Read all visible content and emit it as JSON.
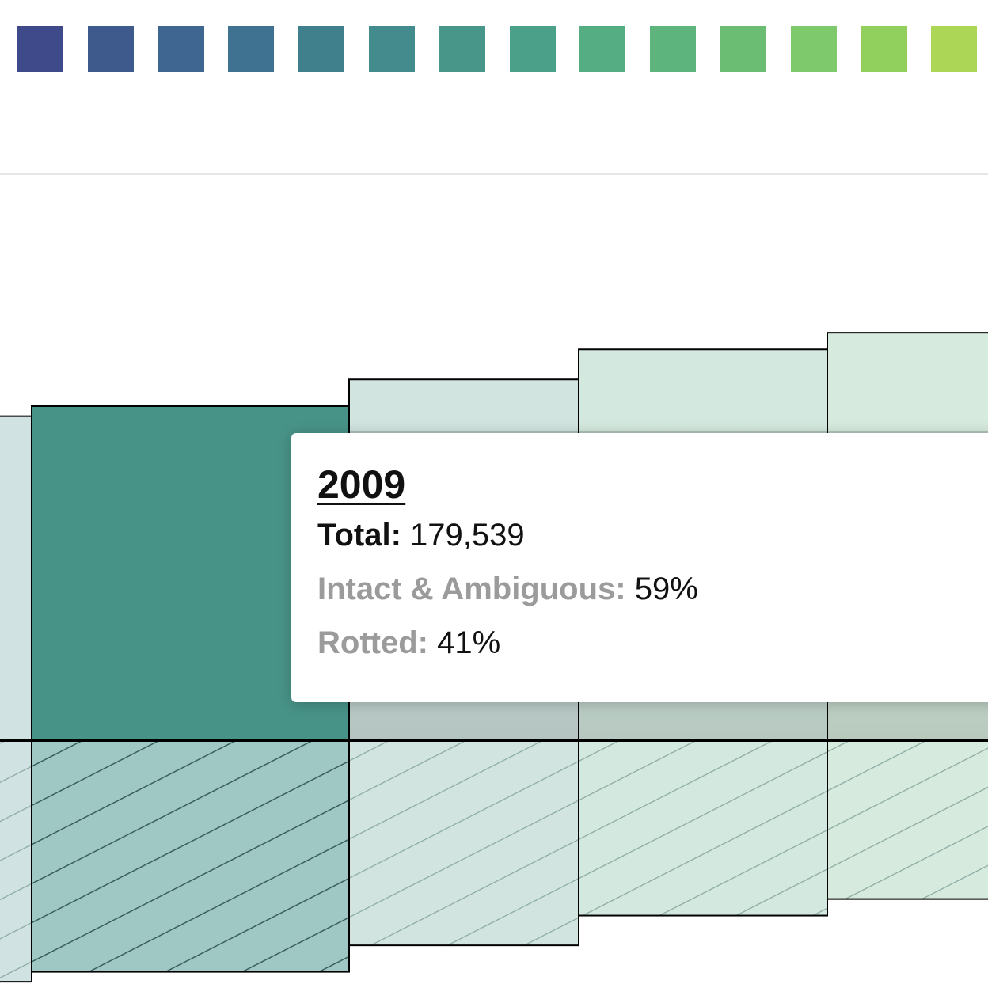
{
  "legend": {
    "swatches": [
      "#3f4a8a",
      "#3e5a8d",
      "#3e6690",
      "#3e7290",
      "#40808d",
      "#438b8c",
      "#48958a",
      "#4ba089",
      "#54ad83",
      "#5eb47d",
      "#6abd73",
      "#7ec96b",
      "#92d05d",
      "#acd756"
    ]
  },
  "chart_data": {
    "type": "bar",
    "baseline_visible": true,
    "bars": [
      {
        "id": "prev",
        "intact": 0.97,
        "rotted": 0.73,
        "fill": "#d0e2e2",
        "highlighted": false
      },
      {
        "id": "2009",
        "intact": 1.0,
        "rotted": 0.7,
        "fill": "#489388",
        "hatch_fill": "#9fc7c3",
        "highlighted": true
      },
      {
        "id": "next1",
        "intact": 1.08,
        "rotted": 0.62,
        "fill": "#d1e4e0",
        "highlighted": false
      },
      {
        "id": "next2",
        "intact": 1.17,
        "rotted": 0.53,
        "fill": "#d3e8de",
        "highlighted": false
      },
      {
        "id": "next3",
        "intact": 1.22,
        "rotted": 0.48,
        "fill": "#d6eadd",
        "highlighted": false
      }
    ]
  },
  "tooltip": {
    "year": "2009",
    "total_label": "Total:",
    "total_value": "179,539",
    "intact_label": "Intact & Ambiguous:",
    "intact_value": "59%",
    "rotted_label": "Rotted:",
    "rotted_value": "41%"
  }
}
